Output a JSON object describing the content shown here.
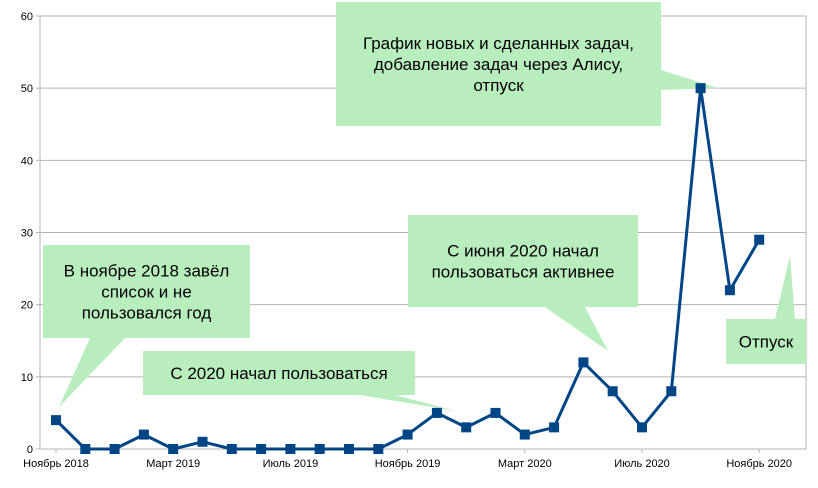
{
  "chart_data": {
    "type": "line",
    "y_ticks": [
      0,
      10,
      20,
      30,
      40,
      50,
      60
    ],
    "ylim": [
      0,
      60
    ],
    "x_ticks": [
      {
        "index": 0,
        "label": "Ноябрь 2018"
      },
      {
        "index": 4,
        "label": "Март 2019"
      },
      {
        "index": 8,
        "label": "Июль 2019"
      },
      {
        "index": 12,
        "label": "Ноябрь 2019"
      },
      {
        "index": 16,
        "label": "Март 2020"
      },
      {
        "index": 20,
        "label": "Июль 2020"
      },
      {
        "index": 24,
        "label": "Ноябрь 2020"
      }
    ],
    "grid": true,
    "legend": "none",
    "series": [
      {
        "color": "#004586",
        "values": [
          4,
          0,
          0,
          2,
          0,
          1,
          0,
          0,
          0,
          0,
          0,
          0,
          2,
          5,
          3,
          5,
          2,
          3,
          12,
          8,
          3,
          8,
          50,
          22,
          29
        ]
      }
    ],
    "annotations": [
      {
        "lines": [
          "В ноябре 2018 завёл",
          "список и не",
          "пользовался год"
        ],
        "point_index": 0
      },
      {
        "lines": [
          "С 2020 начал пользоваться"
        ],
        "point_index": 13
      },
      {
        "lines": [
          "С июня 2020 начал",
          "пользоваться активнее"
        ],
        "point_index": 18
      },
      {
        "lines": [
          "График новых и сделанных задач,",
          "добавление задач через Алису,",
          "отпуск"
        ],
        "point_index": 22
      },
      {
        "lines": [
          "Отпуск"
        ],
        "point_index": 24
      }
    ],
    "callout_color": "#b8eebe",
    "line_color": "#004586"
  }
}
